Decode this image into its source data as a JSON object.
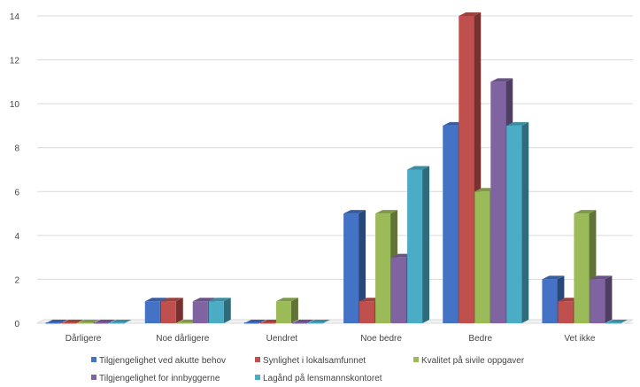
{
  "chart_data": {
    "type": "bar",
    "style": "3d-clustered-column",
    "categories": [
      "Dårligere",
      "Noe dårligere",
      "Uendret",
      "Noe bedre",
      "Bedre",
      "Vet ikke"
    ],
    "series": [
      {
        "name": "Tilgjengelighet ved akutte behov",
        "color": "#4472C4",
        "values": [
          0,
          1,
          0,
          5,
          9,
          2
        ]
      },
      {
        "name": "Synlighet i lokalsamfunnet",
        "color": "#C0504D",
        "values": [
          0,
          1,
          0,
          1,
          14,
          1
        ]
      },
      {
        "name": "Kvalitet på sivile oppgaver",
        "color": "#9BBB59",
        "values": [
          0,
          0,
          1,
          5,
          6,
          5
        ]
      },
      {
        "name": "Tilgjengelighet for innbyggerne",
        "color": "#8064A2",
        "values": [
          0,
          1,
          0,
          3,
          11,
          2
        ]
      },
      {
        "name": "Lagånd på lensmannskontoret",
        "color": "#4BACC6",
        "values": [
          0,
          1,
          0,
          7,
          9,
          0
        ]
      }
    ],
    "ylim": [
      0,
      14
    ],
    "yticks": [
      0,
      2,
      4,
      6,
      8,
      10,
      12,
      14
    ],
    "grid": true,
    "legend": "bottom",
    "title": "",
    "xlabel": "",
    "ylabel": ""
  }
}
